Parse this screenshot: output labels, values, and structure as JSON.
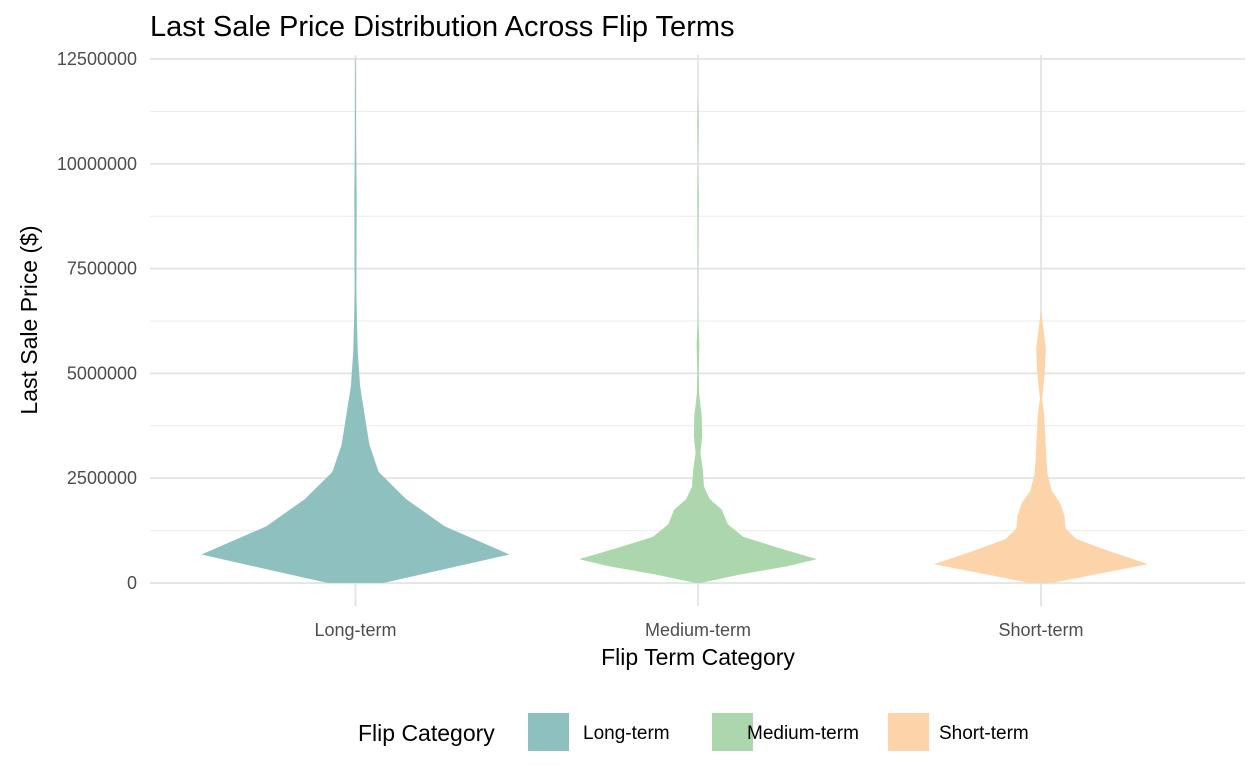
{
  "chart_data": {
    "type": "violin",
    "title": "Last Sale Price Distribution Across Flip Terms",
    "xlabel": "Flip Term Category",
    "ylabel": "Last Sale Price ($)",
    "ylim": [
      0,
      12500000
    ],
    "y_ticks": [
      "0",
      "2500000",
      "5000000",
      "7500000",
      "10000000",
      "12500000"
    ],
    "categories": [
      "Long-term",
      "Medium-term",
      "Short-term"
    ],
    "grid": true,
    "legend": {
      "title": "Flip Category",
      "position": "bottom",
      "entries": [
        "Long-term",
        "Medium-term",
        "Short-term"
      ]
    },
    "colors": {
      "Long-term": "#8dc0bf",
      "Medium-term": "#acd6ab",
      "Short-term": "#fdd3a9"
    },
    "series": [
      {
        "category": "Long-term",
        "y_range": [
          0,
          12500000
        ],
        "density_profile": [
          {
            "y": 0,
            "w": 0.18
          },
          {
            "y": 680000,
            "w": 1.0
          },
          {
            "y": 1350000,
            "w": 0.58
          },
          {
            "y": 2000000,
            "w": 0.33
          },
          {
            "y": 2650000,
            "w": 0.15
          },
          {
            "y": 3300000,
            "w": 0.09
          },
          {
            "y": 4000000,
            "w": 0.06
          },
          {
            "y": 4700000,
            "w": 0.03
          },
          {
            "y": 5500000,
            "w": 0.015
          },
          {
            "y": 6200000,
            "w": 0.01
          },
          {
            "y": 7000000,
            "w": 0.006
          },
          {
            "y": 9200000,
            "w": 0.008
          },
          {
            "y": 10500000,
            "w": 0.004
          },
          {
            "y": 12500000,
            "w": 0.002
          }
        ]
      },
      {
        "category": "Medium-term",
        "y_range": [
          0,
          11500000
        ],
        "density_profile": [
          {
            "y": 0,
            "w": 0.02
          },
          {
            "y": 200000,
            "w": 0.35
          },
          {
            "y": 400000,
            "w": 0.75
          },
          {
            "y": 570000,
            "w": 1.0
          },
          {
            "y": 800000,
            "w": 0.72
          },
          {
            "y": 1100000,
            "w": 0.38
          },
          {
            "y": 1400000,
            "w": 0.25
          },
          {
            "y": 1750000,
            "w": 0.2
          },
          {
            "y": 2000000,
            "w": 0.1
          },
          {
            "y": 2300000,
            "w": 0.05
          },
          {
            "y": 2700000,
            "w": 0.04
          },
          {
            "y": 3100000,
            "w": 0.02
          },
          {
            "y": 3500000,
            "w": 0.035
          },
          {
            "y": 4000000,
            "w": 0.03
          },
          {
            "y": 4500000,
            "w": 0.01
          },
          {
            "y": 5000000,
            "w": 0.005
          },
          {
            "y": 5700000,
            "w": 0.012
          },
          {
            "y": 6200000,
            "w": 0.003
          },
          {
            "y": 7000000,
            "w": 0.001
          },
          {
            "y": 8500000,
            "w": 0.004
          },
          {
            "y": 9300000,
            "w": 0.006
          },
          {
            "y": 10000000,
            "w": 0.001
          },
          {
            "y": 11000000,
            "w": 0.006
          },
          {
            "y": 11500000,
            "w": 0.001
          }
        ]
      },
      {
        "category": "Short-term",
        "y_range": [
          0,
          6500000
        ],
        "density_profile": [
          {
            "y": 0,
            "w": 0.1
          },
          {
            "y": 200000,
            "w": 0.5
          },
          {
            "y": 450000,
            "w": 1.0
          },
          {
            "y": 750000,
            "w": 0.65
          },
          {
            "y": 1050000,
            "w": 0.33
          },
          {
            "y": 1300000,
            "w": 0.23
          },
          {
            "y": 1600000,
            "w": 0.22
          },
          {
            "y": 1900000,
            "w": 0.18
          },
          {
            "y": 2200000,
            "w": 0.1
          },
          {
            "y": 2600000,
            "w": 0.06
          },
          {
            "y": 3000000,
            "w": 0.05
          },
          {
            "y": 3500000,
            "w": 0.04
          },
          {
            "y": 4000000,
            "w": 0.03
          },
          {
            "y": 4400000,
            "w": 0.01
          },
          {
            "y": 5000000,
            "w": 0.035
          },
          {
            "y": 5600000,
            "w": 0.045
          },
          {
            "y": 6100000,
            "w": 0.02
          },
          {
            "y": 6500000,
            "w": 0.002
          }
        ]
      }
    ]
  }
}
